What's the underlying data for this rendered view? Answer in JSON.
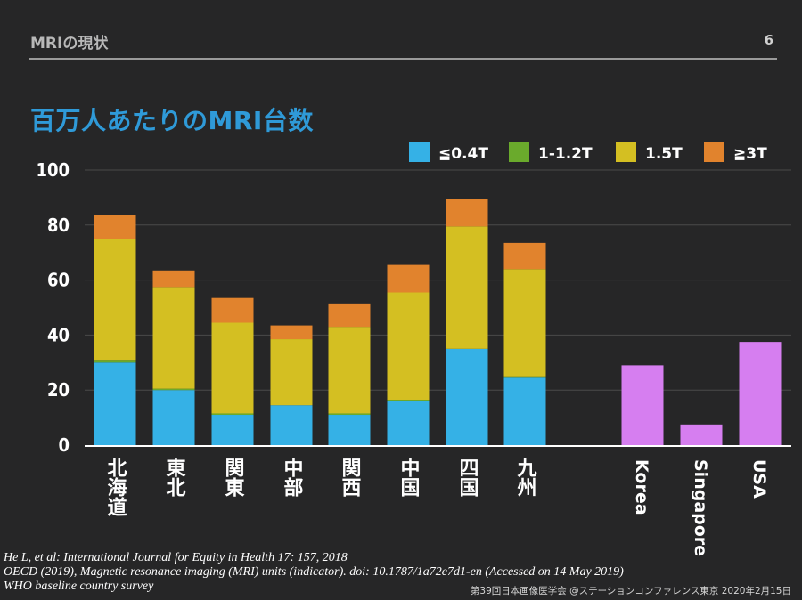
{
  "header": {
    "section": "MRIの現状",
    "page_number": "6"
  },
  "slide_title": "百万人あたりのMRI台数",
  "colors": {
    "low": "#35b1e6",
    "mid": "#6aaa2c",
    "high": "#d4bf22",
    "ultra": "#e1832d",
    "intl": "#d67ef0",
    "grid": "#4a4a4a",
    "text": "#ffffff"
  },
  "chart_data": {
    "type": "bar",
    "stacked": true,
    "ylim": [
      0,
      100
    ],
    "yticks": [
      0,
      20,
      40,
      60,
      80,
      100
    ],
    "grid": true,
    "legend_position": "top-right",
    "series": [
      {
        "name": "≦0.4T",
        "color": "#35b1e6",
        "values": [
          30,
          20,
          11,
          14.5,
          11,
          16,
          35,
          24.5,
          null,
          null,
          null
        ]
      },
      {
        "name": "1-1.2T",
        "color": "#6aaa2c",
        "values": [
          1,
          0.5,
          0.5,
          0,
          0.5,
          0.5,
          0,
          0.5,
          null,
          null,
          null
        ]
      },
      {
        "name": "1.5T",
        "color": "#d4bf22",
        "values": [
          44,
          37,
          33,
          24,
          31.5,
          39,
          44.5,
          39,
          null,
          null,
          null
        ]
      },
      {
        "name": "≧3T",
        "color": "#e1832d",
        "values": [
          8.5,
          6,
          9,
          5,
          8.5,
          10,
          10,
          9.5,
          null,
          null,
          null
        ]
      },
      {
        "color": "#d67ef0",
        "values": [
          null,
          null,
          null,
          null,
          null,
          null,
          null,
          null,
          29,
          7.5,
          37.5
        ]
      }
    ],
    "categories": [
      "北海道",
      "東北",
      "関東",
      "中部",
      "関西",
      "中国",
      "四国",
      "九州",
      "Korea",
      "Singapore",
      "USA"
    ]
  },
  "references": [
    "He L, et al: International Journal for Equity in Health 17: 157, 2018",
    "OECD (2019), Magnetic resonance imaging (MRI) units (indicator). doi: 10.1787/1a72e7d1-en (Accessed on 14 May 2019)",
    "WHO baseline country survey"
  ],
  "footer": "第39回日本画像医学会 @ステーションコンファレンス東京  2020年2月15日"
}
